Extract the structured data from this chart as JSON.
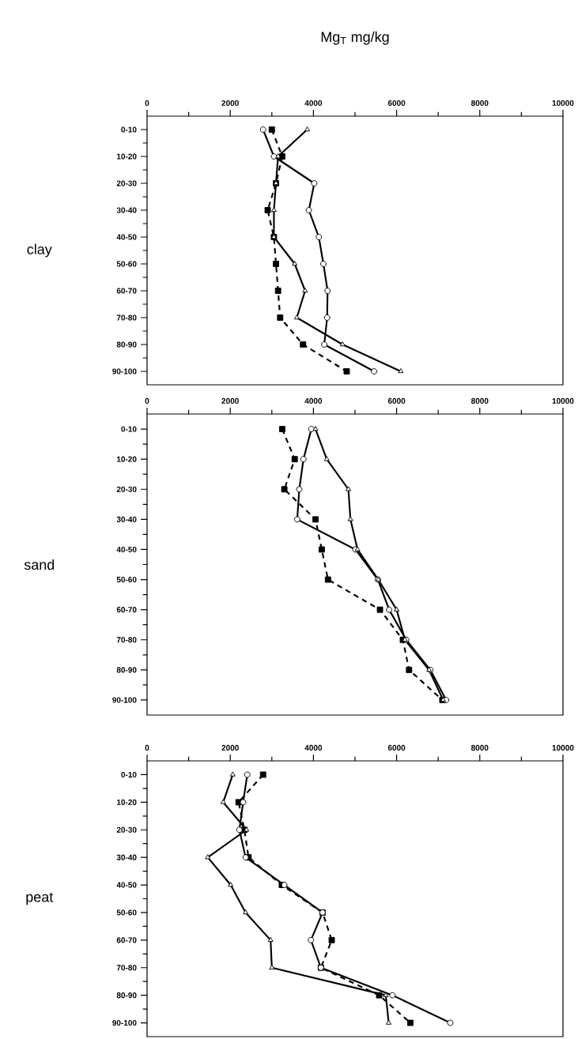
{
  "chart_data": [
    {
      "type": "line",
      "title": "Mg$_{T}$ mg/kg",
      "ylabel": "clay",
      "orientation": "horizontal",
      "categories": [
        "0-10",
        "10-20",
        "20-30",
        "30-40",
        "40-50",
        "50-60",
        "60-70",
        "70-80",
        "80-90",
        "90-100"
      ],
      "xlim": [
        0,
        10000
      ],
      "xticks": [
        0,
        2000,
        4000,
        6000,
        8000,
        10000
      ],
      "series": [
        {
          "color": "#000000",
          "marker": "square",
          "line_style": "dashed",
          "values": [
            3000,
            3250,
            3100,
            2900,
            3050,
            3100,
            3150,
            3200,
            3750,
            4800
          ]
        },
        {
          "color": "#000000",
          "marker": "circle",
          "line_style": "solid",
          "values": [
            2790,
            3050,
            4020,
            3890,
            4130,
            4240,
            4340,
            4330,
            4260,
            5460
          ]
        },
        {
          "color": "#000000",
          "marker": "triangle",
          "line_style": "solid",
          "values": [
            3850,
            3150,
            3100,
            3050,
            3050,
            3550,
            3800,
            3600,
            4700,
            6100
          ]
        }
      ]
    },
    {
      "type": "line",
      "ylabel": "sand",
      "orientation": "horizontal",
      "categories": [
        "0-10",
        "10-20",
        "20-30",
        "30-40",
        "40-50",
        "50-60",
        "60-70",
        "70-80",
        "80-90",
        "90-100"
      ],
      "xlim": [
        0,
        10000
      ],
      "xticks": [
        0,
        2000,
        4000,
        6000,
        8000,
        10000
      ],
      "series": [
        {
          "color": "#000000",
          "marker": "square",
          "line_style": "dashed",
          "values": [
            3250,
            3550,
            3300,
            4050,
            4200,
            4350,
            5600,
            6150,
            6300,
            7100
          ]
        },
        {
          "color": "#000000",
          "marker": "circle",
          "line_style": "solid",
          "values": [
            3950,
            3760,
            3660,
            3610,
            5010,
            5550,
            5820,
            6230,
            6810,
            7190
          ]
        },
        {
          "color": "#000000",
          "marker": "triangle",
          "line_style": "solid",
          "values": [
            4050,
            4320,
            4840,
            4890,
            5060,
            5560,
            6000,
            6200,
            6780,
            7120
          ]
        }
      ]
    },
    {
      "type": "line",
      "ylabel": "peat",
      "orientation": "horizontal",
      "categories": [
        "0-10",
        "10-20",
        "20-30",
        "30-40",
        "40-50",
        "50-60",
        "60-70",
        "70-80",
        "80-90",
        "90-100"
      ],
      "xlim": [
        0,
        10000
      ],
      "xticks": [
        0,
        2000,
        4000,
        6000,
        8000,
        10000
      ],
      "series": [
        {
          "color": "#000000",
          "marker": "square",
          "line_style": "dashed",
          "values": [
            2790,
            2200,
            2340,
            2440,
            3240,
            4220,
            4440,
            4180,
            5580,
            6330
          ]
        },
        {
          "color": "#000000",
          "marker": "circle",
          "line_style": "solid",
          "values": [
            2410,
            2310,
            2220,
            2370,
            3300,
            4220,
            3940,
            4180,
            5900,
            7290
          ]
        },
        {
          "color": "#000000",
          "marker": "triangle",
          "line_style": "solid",
          "values": [
            2060,
            1830,
            2390,
            1460,
            2010,
            2370,
            2970,
            3000,
            5740,
            5810
          ]
        }
      ]
    }
  ]
}
